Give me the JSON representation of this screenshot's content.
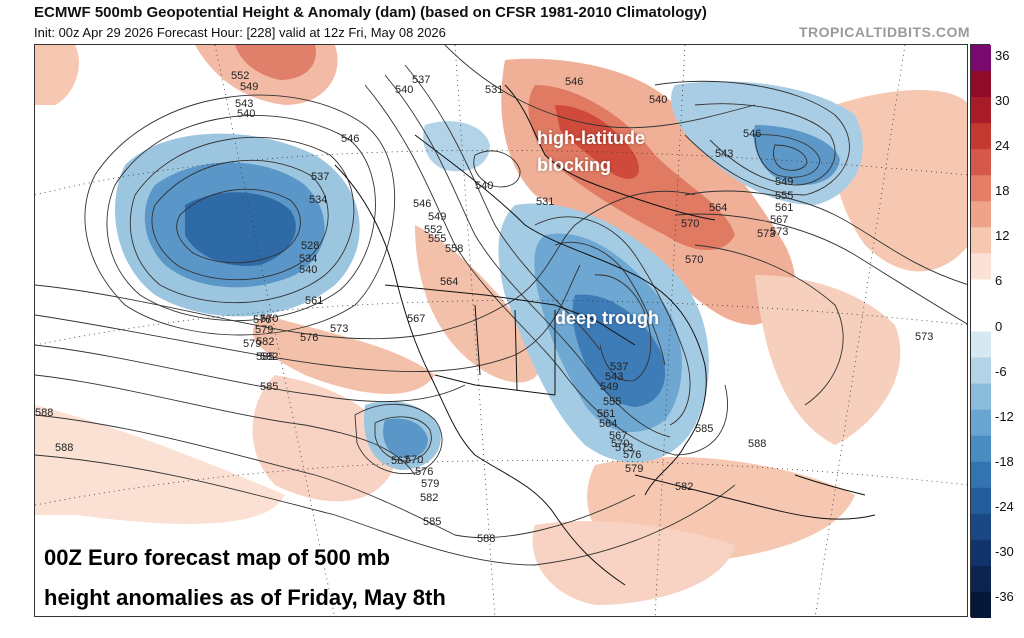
{
  "header": {
    "title": "ECMWF 500mb Geopotential Height & Anomaly (dam) (based on CFSR 1981-2010 Climatology)",
    "subtitle": "Init: 00z Apr 29 2026   Forecast Hour: [228]   valid at 12z Fri, May 08 2026",
    "watermark": "TROPICALTIDBITS.COM"
  },
  "annotations": {
    "blocking_line1": "high-latitude",
    "blocking_line2": "blocking",
    "trough": "deep trough"
  },
  "caption": {
    "line1": "00Z Euro forecast map of 500 mb",
    "line2": "height anomalies as of Friday, May 8th"
  },
  "colorbar": {
    "labels": [
      "36",
      "30",
      "24",
      "18",
      "12",
      "6",
      "0",
      "-6",
      "-12",
      "-18",
      "-24",
      "-30",
      "-36"
    ],
    "colors": [
      "#7a0a6e",
      "#8e0c2a",
      "#a81c2a",
      "#c23a32",
      "#d6584a",
      "#e47e66",
      "#eea48a",
      "#f6c8b2",
      "#fbe2d6",
      "#ffffff",
      "#ffffff",
      "#d6e8f2",
      "#b3d4e8",
      "#8cbcdc",
      "#6aa4d0",
      "#4a8cc2",
      "#3373b0",
      "#245d9c",
      "#1a4884",
      "#12346a",
      "#0b2450",
      "#061636"
    ]
  },
  "contour_labels": [
    "552",
    "549",
    "543",
    "540",
    "546",
    "537",
    "540",
    "531",
    "546",
    "540",
    "546",
    "543",
    "549",
    "555",
    "561",
    "567",
    "573",
    "537",
    "534",
    "540",
    "531",
    "546",
    "549",
    "552",
    "555",
    "558",
    "564",
    "567",
    "570",
    "573",
    "576",
    "579",
    "582",
    "585",
    "528",
    "534",
    "540",
    "561",
    "570",
    "573",
    "576",
    "579",
    "582",
    "585",
    "588",
    "588",
    "567",
    "570",
    "576",
    "579",
    "582",
    "585",
    "588",
    "537",
    "543",
    "549",
    "555",
    "561",
    "564",
    "567",
    "570",
    "573",
    "576",
    "579",
    "582",
    "585",
    "588",
    "564",
    "570",
    "573",
    "585"
  ]
}
